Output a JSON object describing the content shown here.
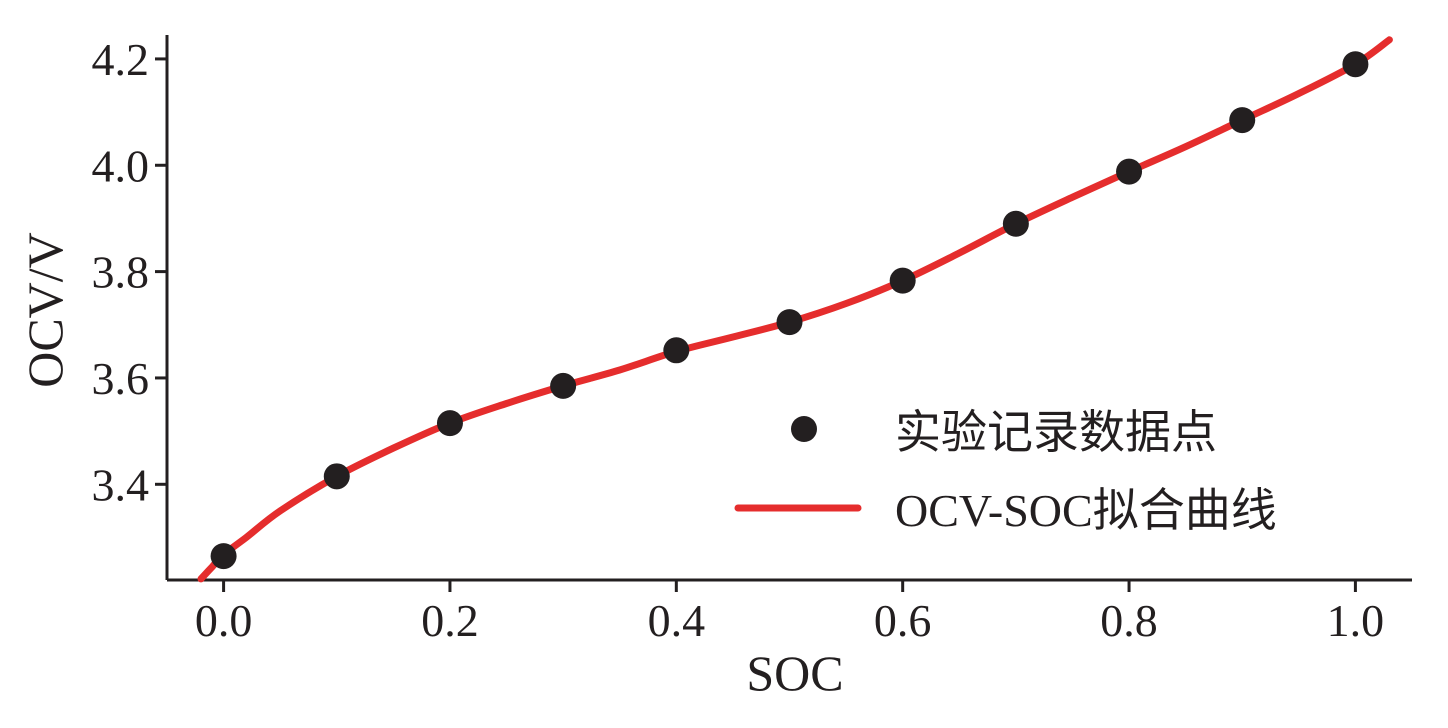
{
  "chart_data": {
    "type": "scatter",
    "title": "",
    "xlabel": "SOC",
    "ylabel": "OCV/V",
    "xlim": [
      -0.05,
      1.05
    ],
    "ylim": [
      3.22,
      4.245
    ],
    "xticks": [
      "0.0",
      "0.2",
      "0.4",
      "0.6",
      "0.8",
      "1.0"
    ],
    "yticks": [
      "3.4",
      "3.6",
      "3.8",
      "4.0",
      "4.2"
    ],
    "grid": false,
    "legend_position": "bottom-right",
    "series": [
      {
        "name": "实验记录数据点",
        "kind": "points",
        "color": "#231f20",
        "x": [
          0.0,
          0.1,
          0.2,
          0.3,
          0.4,
          0.5,
          0.6,
          0.7,
          0.8,
          0.9,
          1.0
        ],
        "y": [
          3.265,
          3.415,
          3.515,
          3.585,
          3.652,
          3.705,
          3.783,
          3.89,
          3.988,
          4.085,
          4.19
        ]
      },
      {
        "name": "OCV-SOC拟合曲线",
        "kind": "line",
        "color": "#e52d2d",
        "x": [
          -0.02,
          -0.01,
          0.0,
          0.02,
          0.05,
          0.1,
          0.15,
          0.2,
          0.25,
          0.3,
          0.35,
          0.4,
          0.45,
          0.5,
          0.55,
          0.6,
          0.65,
          0.7,
          0.75,
          0.8,
          0.85,
          0.9,
          0.95,
          1.0,
          1.03
        ],
        "y": [
          3.222,
          3.245,
          3.268,
          3.3,
          3.35,
          3.415,
          3.468,
          3.515,
          3.552,
          3.585,
          3.615,
          3.65,
          3.677,
          3.705,
          3.74,
          3.783,
          3.835,
          3.89,
          3.94,
          3.988,
          4.035,
          4.085,
          4.135,
          4.19,
          4.236
        ]
      }
    ]
  }
}
